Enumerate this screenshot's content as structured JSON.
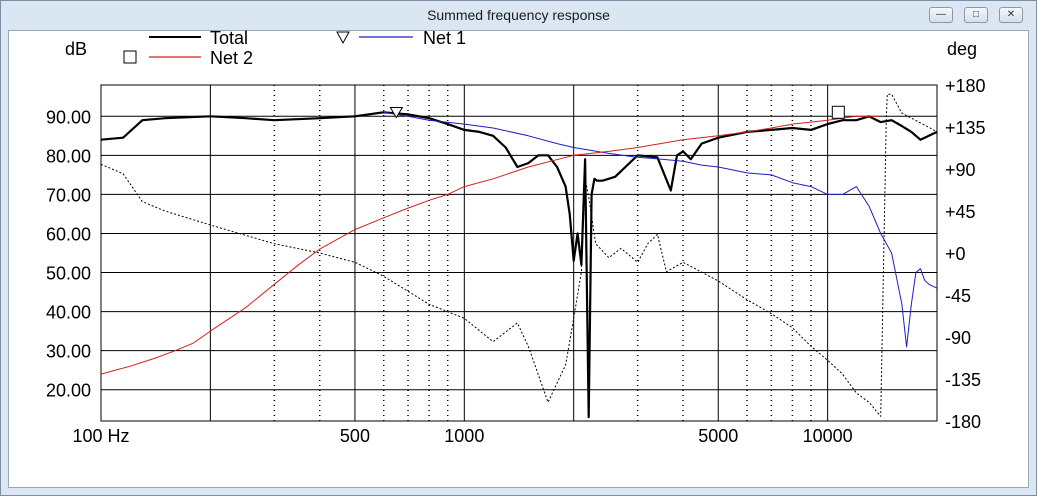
{
  "window": {
    "title": "Summed frequency response"
  },
  "colors": {
    "total": "#000000",
    "net1": "#1d1dc8",
    "net2": "#d61f1f",
    "phase": "#000000",
    "grid": "#000000"
  },
  "chart_data": {
    "type": "line",
    "title": "Summed frequency response",
    "xscale": "log",
    "xlim": [
      100,
      20000
    ],
    "x_ticks": [
      100,
      500,
      1000,
      5000,
      10000
    ],
    "x_tick_labels": [
      "100 Hz",
      "500",
      "1000",
      "5000",
      "10000"
    ],
    "y_left": {
      "label": "dB",
      "range": [
        12,
        98
      ],
      "ticks": [
        20,
        30,
        40,
        50,
        60,
        70,
        80,
        90
      ],
      "tick_labels": [
        "20.00",
        "30.00",
        "40.00",
        "50.00",
        "60.00",
        "70.00",
        "80.00",
        "90.00"
      ]
    },
    "y_right": {
      "label": "deg",
      "range": [
        -180,
        180
      ],
      "ticks": [
        180,
        135,
        90,
        45,
        0,
        -45,
        -90,
        -135,
        -180
      ],
      "tick_labels": [
        "+180",
        "+135",
        "+90",
        "+45",
        "+0",
        "-45",
        "-90",
        "-135",
        "-180"
      ]
    },
    "legend": [
      {
        "name": "Total",
        "marker": ""
      },
      {
        "name": "Net 2",
        "marker": "square"
      },
      {
        "name": "Net 1",
        "marker": "triangle-down"
      }
    ],
    "series": [
      {
        "name": "Total",
        "axis": "left",
        "x": [
          100,
          115,
          130,
          150,
          200,
          250,
          300,
          400,
          500,
          600,
          700,
          800,
          900,
          1000,
          1100,
          1200,
          1300,
          1400,
          1500,
          1600,
          1700,
          1800,
          1900,
          1950,
          2000,
          2050,
          2100,
          2150,
          2200,
          2240,
          2280,
          2320,
          2400,
          2600,
          3000,
          3400,
          3700,
          3850,
          4000,
          4200,
          4500,
          5000,
          6000,
          7000,
          8000,
          9000,
          10000,
          11000,
          12000,
          13000,
          14000,
          15000,
          16000,
          17000,
          18000,
          19000,
          20000
        ],
        "y": [
          84,
          84.5,
          89,
          89.5,
          90,
          89.5,
          89,
          89.5,
          90,
          91,
          90.5,
          89.5,
          88,
          86.5,
          86,
          85,
          82,
          77,
          78,
          80,
          80,
          77,
          72,
          65,
          53,
          60,
          52,
          79,
          13,
          70,
          74,
          73.5,
          73.5,
          74.5,
          80,
          79.5,
          71,
          80,
          81,
          79,
          83,
          84.5,
          86,
          86.5,
          87,
          86.5,
          88,
          89,
          89,
          90,
          88.5,
          89,
          87.5,
          86,
          84,
          85,
          86
        ]
      },
      {
        "name": "Net 1",
        "axis": "left",
        "x": [
          600,
          700,
          800,
          1000,
          1200,
          1500,
          1800,
          2000,
          2500,
          3000,
          3500,
          4000,
          4500,
          5000,
          6000,
          7000,
          8000,
          9000,
          10000,
          11000,
          12000,
          13000,
          14000,
          15000,
          16000,
          16500,
          17000,
          17500,
          18000,
          18500,
          19000,
          20000
        ],
        "y": [
          91,
          90,
          89,
          88,
          87,
          85,
          83,
          82,
          80.5,
          79.5,
          79,
          78.5,
          77.5,
          77,
          75.5,
          75,
          73,
          72,
          70,
          70,
          72,
          67,
          60,
          55,
          42,
          31,
          42,
          50,
          51,
          48,
          47,
          46
        ]
      },
      {
        "name": "Net 2",
        "axis": "left",
        "x": [
          100,
          120,
          140,
          160,
          180,
          200,
          250,
          300,
          350,
          400,
          500,
          600,
          700,
          800,
          900,
          1000,
          1200,
          1500,
          2000,
          2500,
          3000,
          4000,
          5000,
          6000,
          7000,
          8000,
          10000,
          12000,
          14000
        ],
        "y": [
          24,
          26,
          28,
          30,
          32,
          35,
          41,
          47,
          52,
          56,
          61,
          64,
          66.5,
          68.5,
          70,
          72,
          74,
          77,
          80,
          81,
          82,
          84,
          85,
          86,
          87,
          88,
          89,
          90,
          90
        ]
      },
      {
        "name": "phase",
        "axis": "right",
        "x": [
          100,
          115,
          130,
          150,
          200,
          300,
          400,
          500,
          600,
          800,
          1000,
          1200,
          1400,
          1500,
          1700,
          1900,
          2000,
          2100,
          2150,
          2200,
          2300,
          2500,
          2700,
          3000,
          3200,
          3400,
          3600,
          4000,
          5000,
          6000,
          7000,
          8000,
          9000,
          10000,
          11000,
          12000,
          13000,
          14000,
          14500,
          14600,
          15000,
          16000,
          20000
        ],
        "y": [
          95,
          85,
          55,
          45,
          30,
          10,
          0,
          -10,
          -25,
          -55,
          -70,
          -95,
          -75,
          -100,
          -160,
          -120,
          -70,
          -20,
          80,
          60,
          10,
          -5,
          5,
          -10,
          10,
          20,
          -20,
          -10,
          -30,
          -50,
          -65,
          -80,
          -100,
          -115,
          -130,
          -150,
          -160,
          -175,
          145,
          170,
          170,
          150,
          130
        ]
      }
    ]
  }
}
